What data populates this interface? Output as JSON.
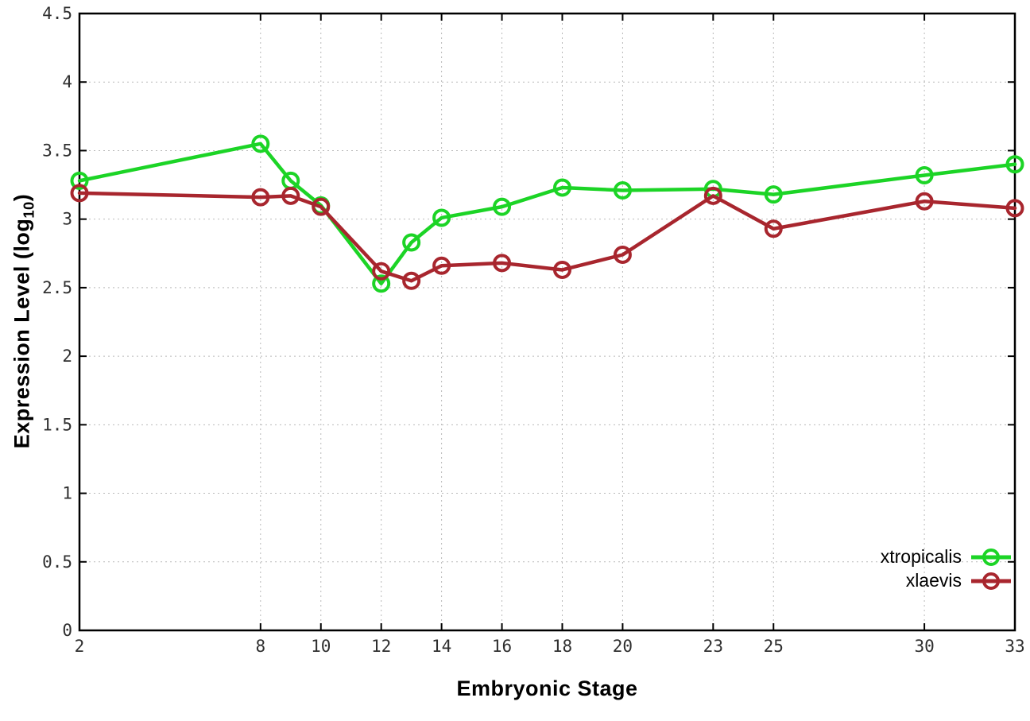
{
  "figure": {
    "background": "#ffffff",
    "border_color": "#000000",
    "grid_color": "#b9b9b9",
    "tick_label_color": "#2f2f2f"
  },
  "chart_data": {
    "type": "line",
    "title": "",
    "xlabel": "Embryonic Stage",
    "ylabel": "Expression Level (log10)",
    "ylabel_parts": {
      "prefix": "Expression Level (log",
      "sub": "10",
      "suffix": ")"
    },
    "xlim": [
      2,
      33
    ],
    "ylim": [
      0,
      4.5
    ],
    "grid": true,
    "xtick_values": [
      2,
      8,
      10,
      12,
      14,
      16,
      18,
      20,
      23,
      25,
      30,
      33
    ],
    "xtick_labels": [
      "2",
      "8",
      "10",
      "12",
      "14",
      "16",
      "18",
      "20",
      "23",
      "25",
      "30",
      "33"
    ],
    "ytick_values": [
      0,
      0.5,
      1,
      1.5,
      2,
      2.5,
      3,
      3.5,
      4,
      4.5
    ],
    "ytick_labels": [
      "0",
      "0.5",
      "1",
      "1.5",
      "2",
      "2.5",
      "3",
      "3.5",
      "4",
      "4.5"
    ],
    "x": [
      2,
      8,
      9,
      10,
      12,
      13,
      14,
      16,
      18,
      20,
      23,
      25,
      30,
      33
    ],
    "series": [
      {
        "name": "xtropicalis",
        "color": "#1cd426",
        "marker": "open-circle",
        "values": [
          3.28,
          3.55,
          3.28,
          3.1,
          2.53,
          2.83,
          3.01,
          3.09,
          3.23,
          3.21,
          3.22,
          3.18,
          3.32,
          3.4
        ]
      },
      {
        "name": "xlaevis",
        "color": "#a8262e",
        "marker": "open-circle",
        "values": [
          3.19,
          3.16,
          3.17,
          3.09,
          2.62,
          2.55,
          2.66,
          2.68,
          2.63,
          2.74,
          3.17,
          2.93,
          3.13,
          3.08
        ]
      }
    ],
    "legend": {
      "position": "inside-bottom-right",
      "entries": [
        "xtropicalis",
        "xlaevis"
      ]
    }
  }
}
